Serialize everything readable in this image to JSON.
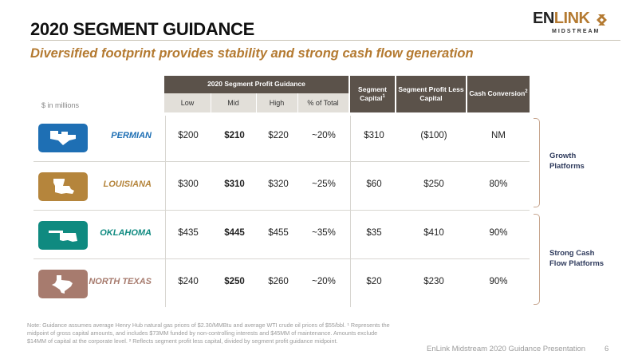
{
  "header": {
    "title": "2020 SEGMENT GUIDANCE",
    "subtitle": "Diversified footprint provides stability and strong cash flow generation"
  },
  "logo": {
    "word_a": "EN",
    "word_b": "LINK",
    "sub": "MIDSTREAM"
  },
  "table": {
    "units_label": "$ in millions",
    "group_header": "2020 Segment Profit Guidance",
    "sub_headers": [
      "Low",
      "Mid",
      "High",
      "% of Total"
    ],
    "col_headers": {
      "segment_capital": "Segment Capital",
      "segment_capital_sup": "1",
      "profit_less_capital": "Segment Profit Less Capital",
      "cash_conversion": "Cash Conversion",
      "cash_conversion_sup": "2"
    },
    "rows": [
      {
        "region": "PERMIAN",
        "low": "$200",
        "mid": "$210",
        "high": "$220",
        "pct": "~20%",
        "capital": "$310",
        "less_capital": "($100)",
        "conversion": "NM",
        "color": "#1e6fb4",
        "icon": "permian-map-icon"
      },
      {
        "region": "LOUISIANA",
        "low": "$300",
        "mid": "$310",
        "high": "$320",
        "pct": "~25%",
        "capital": "$60",
        "less_capital": "$250",
        "conversion": "80%",
        "color": "#b5853c",
        "icon": "louisiana-map-icon"
      },
      {
        "region": "OKLAHOMA",
        "low": "$435",
        "mid": "$445",
        "high": "$455",
        "pct": "~35%",
        "capital": "$35",
        "less_capital": "$410",
        "conversion": "90%",
        "color": "#0f8a80",
        "icon": "oklahoma-map-icon"
      },
      {
        "region": "NORTH TEXAS",
        "low": "$240",
        "mid": "$250",
        "high": "$260",
        "pct": "~20%",
        "capital": "$20",
        "less_capital": "$230",
        "conversion": "90%",
        "color": "#a77b6e",
        "icon": "texas-map-icon"
      }
    ]
  },
  "groups": {
    "growth_line1": "Growth",
    "growth_line2": "Platforms",
    "cashflow_line1": "Strong Cash",
    "cashflow_line2": "Flow Platforms"
  },
  "footnote": "Note: Guidance assumes average Henry Hub natural gas prices of $2.30/MMBtu and average WTI crude oil prices of $55/bbl. ¹ Represents the midpoint of gross capital amounts, and includes $73MM funded by non-controlling interests and $45MM of maintenance. Amounts exclude $14MM of capital at the corporate level. ² Reflects segment profit less capital, divided by segment profit guidance midpoint.",
  "footer": {
    "text": "EnLink Midstream 2020 Guidance Presentation",
    "page": "6"
  },
  "colors": {
    "accent": "#b47a31",
    "header_dark": "#5b524a",
    "header_light": "#e2dfd9",
    "group_label": "#2e3a5c"
  }
}
